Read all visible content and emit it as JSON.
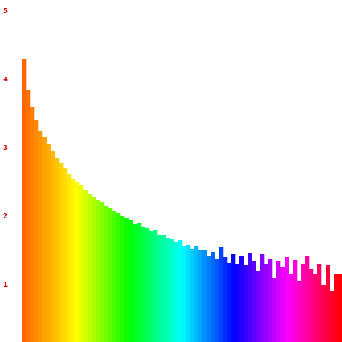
{
  "chart_data": {
    "type": "bar",
    "values": [
      4.3,
      3.85,
      3.6,
      3.4,
      3.25,
      3.15,
      3.05,
      2.95,
      2.85,
      2.77,
      2.7,
      2.62,
      2.55,
      2.5,
      2.45,
      2.38,
      2.33,
      2.28,
      2.23,
      2.2,
      2.15,
      2.12,
      2.07,
      2.05,
      2.0,
      1.97,
      1.95,
      1.88,
      1.9,
      1.84,
      1.83,
      1.78,
      1.8,
      1.73,
      1.72,
      1.68,
      1.66,
      1.62,
      1.65,
      1.57,
      1.58,
      1.52,
      1.56,
      1.5,
      1.5,
      1.42,
      1.48,
      1.38,
      1.55,
      1.4,
      1.32,
      1.45,
      1.3,
      1.42,
      1.28,
      1.46,
      1.35,
      1.2,
      1.44,
      1.3,
      1.38,
      1.1,
      1.35,
      1.25,
      1.4,
      1.15,
      1.36,
      1.05,
      1.3,
      1.42,
      1.22,
      1.15,
      1.3,
      1.0,
      1.28,
      0.9,
      1.15,
      1.16
    ],
    "color_gradient": [
      "#ff6600",
      "#ffff00",
      "#00ff00",
      "#00ffff",
      "#0000ff",
      "#ff00ff",
      "#ff0000"
    ],
    "ylim": [
      0.16,
      5.16
    ],
    "yticks": [
      1,
      2,
      3,
      4,
      5
    ],
    "tick_color": "#cc0000",
    "grid": false
  }
}
